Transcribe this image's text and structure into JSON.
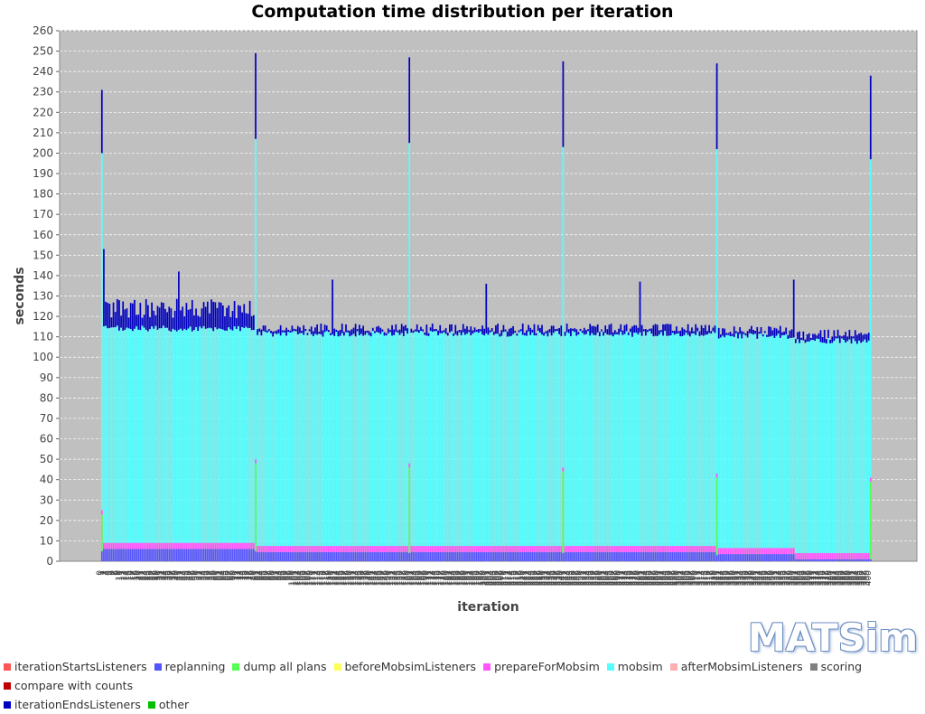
{
  "chart_data": {
    "type": "bar",
    "stacked": true,
    "title": "Computation time distribution per iteration",
    "xlabel": "iteration",
    "ylabel": "seconds",
    "ylim": [
      0,
      260
    ],
    "yticks": [
      0,
      10,
      20,
      30,
      40,
      50,
      60,
      70,
      80,
      90,
      100,
      110,
      120,
      130,
      140,
      150,
      160,
      170,
      180,
      190,
      200,
      210,
      220,
      230,
      240,
      250,
      260
    ],
    "grid": true,
    "legend_position": "bottom",
    "iterations": {
      "first": 0,
      "last": 400
    },
    "series": [
      {
        "name": "iterationStartsListeners",
        "color": "#ff5555"
      },
      {
        "name": "replanning",
        "color": "#5555ff"
      },
      {
        "name": "dump all plans",
        "color": "#55ff55"
      },
      {
        "name": "beforeMobsimListeners",
        "color": "#ffff55"
      },
      {
        "name": "prepareForMobsim",
        "color": "#ff55ff"
      },
      {
        "name": "mobsim",
        "color": "#55ffff"
      },
      {
        "name": "afterMobsimListeners",
        "color": "#ffafaf"
      },
      {
        "name": "scoring",
        "color": "#808080"
      },
      {
        "name": "compare with counts",
        "color": "#c00000"
      },
      {
        "name": "iterationEndsListeners",
        "color": "#0000c0"
      },
      {
        "name": "other",
        "color": "#00c000"
      }
    ],
    "spike_iterations": [
      {
        "iteration": 0,
        "replanning": 5,
        "dump_all_plans": 18,
        "prepareForMobsim": 2,
        "mobsim": 175,
        "iterationEndsListeners": 31
      },
      {
        "iteration": 80,
        "replanning": 5,
        "dump_all_plans": 43,
        "prepareForMobsim": 2,
        "mobsim": 157,
        "iterationEndsListeners": 42
      },
      {
        "iteration": 160,
        "replanning": 4,
        "dump_all_plans": 42,
        "prepareForMobsim": 2,
        "mobsim": 157,
        "iterationEndsListeners": 42
      },
      {
        "iteration": 240,
        "replanning": 4,
        "dump_all_plans": 40,
        "prepareForMobsim": 2,
        "mobsim": 157,
        "iterationEndsListeners": 42
      },
      {
        "iteration": 320,
        "replanning": 3,
        "dump_all_plans": 38,
        "prepareForMobsim": 2,
        "mobsim": 159,
        "iterationEndsListeners": 42
      },
      {
        "iteration": 400,
        "replanning": 1,
        "dump_all_plans": 38,
        "prepareForMobsim": 2,
        "mobsim": 156,
        "iterationEndsListeners": 41
      }
    ],
    "phases": [
      {
        "from": 1,
        "to": 80,
        "replanning": 6,
        "prepareForMobsim": 3,
        "mobsim": 105,
        "total_mean": 124,
        "total_jitter": 5
      },
      {
        "from": 81,
        "to": 320,
        "replanning": 4.5,
        "prepareForMobsim": 3,
        "mobsim": 104,
        "total_mean": 114,
        "total_jitter": 2.5
      },
      {
        "from": 321,
        "to": 360,
        "replanning": 3.5,
        "prepareForMobsim": 3,
        "mobsim": 104,
        "total_mean": 113,
        "total_jitter": 2.5
      },
      {
        "from": 361,
        "to": 399,
        "replanning": 1,
        "prepareForMobsim": 3,
        "mobsim": 104,
        "total_mean": 111,
        "total_jitter": 2.5
      }
    ],
    "minor_peaks": [
      {
        "iteration": 1,
        "total": 153
      },
      {
        "iteration": 40,
        "total": 142
      },
      {
        "iteration": 120,
        "total": 138
      },
      {
        "iteration": 200,
        "total": 136
      },
      {
        "iteration": 280,
        "total": 137
      },
      {
        "iteration": 360,
        "total": 138
      }
    ]
  },
  "logo": {
    "text": "MATSim"
  }
}
